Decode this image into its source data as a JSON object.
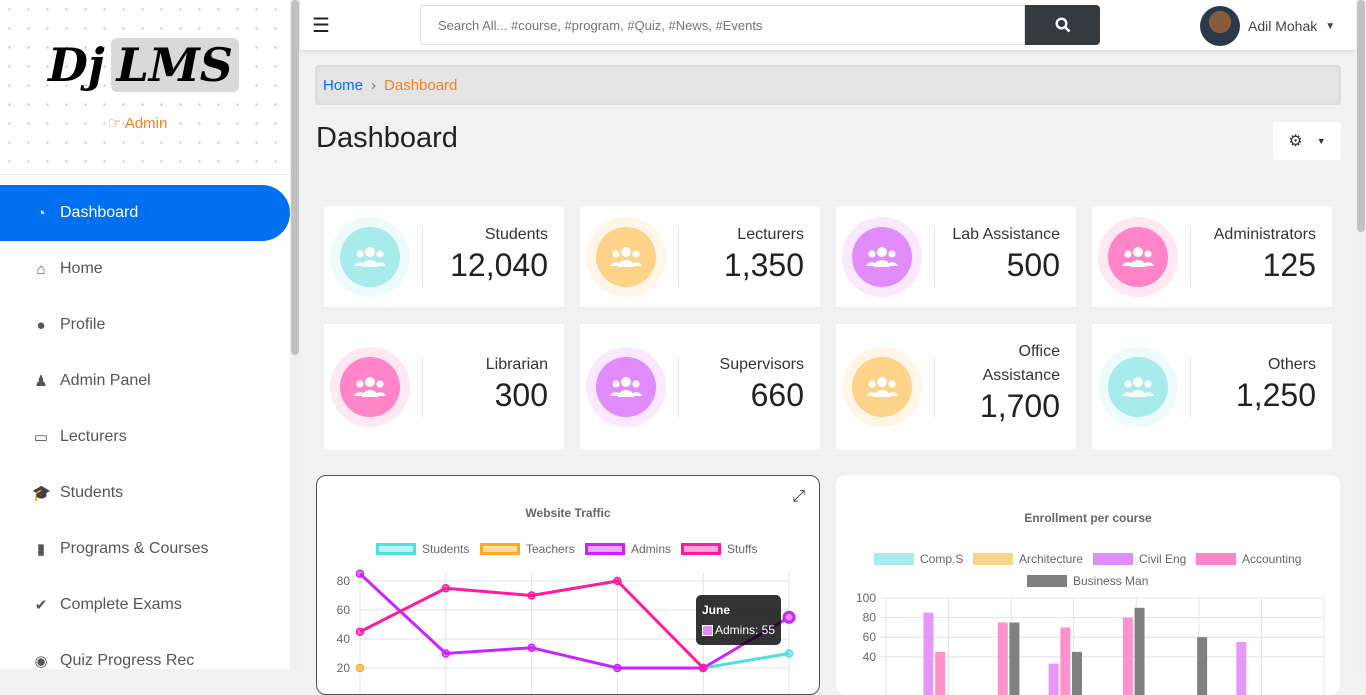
{
  "sidebar": {
    "logo": {
      "part1": "Dj",
      "part2": "LMS"
    },
    "role": "Admin",
    "items": [
      {
        "label": "Dashboard",
        "icon": "tachometer-icon",
        "active": true
      },
      {
        "label": "Home",
        "icon": "home-icon"
      },
      {
        "label": "Profile",
        "icon": "user-icon"
      },
      {
        "label": "Admin Panel",
        "icon": "user-tie-icon"
      },
      {
        "label": "Lecturers",
        "icon": "chalkboard-teacher-icon"
      },
      {
        "label": "Students",
        "icon": "user-graduate-icon"
      },
      {
        "label": "Programs & Courses",
        "icon": "book-open-icon"
      },
      {
        "label": "Complete Exams",
        "icon": "check-double-icon"
      },
      {
        "label": "Quiz Progress Rec",
        "icon": "record-icon"
      }
    ]
  },
  "topbar": {
    "search_placeholder": "Search All... #course, #program, #Quiz, #News, #Events",
    "user_name": "Adil Mohak"
  },
  "breadcrumb": {
    "home": "Home",
    "current": "Dashboard"
  },
  "page_title": "Dashboard",
  "stats": [
    {
      "label": "Students",
      "value": "12,040",
      "color": "#a8ebeb"
    },
    {
      "label": "Lecturers",
      "value": "1,350",
      "color": "#fdd38a"
    },
    {
      "label": "Lab Assistance",
      "value": "500",
      "color": "#e28cfb"
    },
    {
      "label": "Administrators",
      "value": "125",
      "color": "#ff85c8"
    },
    {
      "label": "Librarian",
      "value": "300",
      "color": "#ff85c8"
    },
    {
      "label": "Supervisors",
      "value": "660",
      "color": "#e28cfb"
    },
    {
      "label": "Office Assistance",
      "value": "1,700",
      "color": "#fdd38a"
    },
    {
      "label": "Others",
      "value": "1,250",
      "color": "#a8ebeb"
    }
  ],
  "chart_data": [
    {
      "type": "line",
      "title": "Website Traffic",
      "legend_position": "top",
      "grid": true,
      "ylim": [
        20,
        90
      ],
      "y_ticks": [
        "80",
        "60",
        "40",
        "20"
      ],
      "series": [
        {
          "name": "Students",
          "color": "#4fe0e0",
          "values": [
            null,
            null,
            null,
            null,
            20,
            30
          ]
        },
        {
          "name": "Teachers",
          "color": "#ffa91f",
          "values": [
            20,
            null,
            null,
            null,
            null,
            null
          ]
        },
        {
          "name": "Admins",
          "color": "#cc22ff",
          "values": [
            85,
            30,
            34,
            20,
            20,
            55
          ]
        },
        {
          "name": "Stuffs",
          "color": "#ff1aa0",
          "values": [
            45,
            75,
            70,
            80,
            20,
            null
          ]
        }
      ],
      "tooltip": {
        "title": "June",
        "text": "Admins: 55"
      }
    },
    {
      "type": "bar",
      "title": "Enrollment per course",
      "legend_position": "top",
      "grid": true,
      "ylim": [
        30,
        100
      ],
      "y_ticks": [
        "100",
        "80",
        "60",
        "40"
      ],
      "series": [
        {
          "name": "Comp.S",
          "color": "#a8ebeb",
          "values": [
            null,
            null,
            null,
            null,
            null,
            null
          ]
        },
        {
          "name": "Architecture",
          "color": "#fdd38a",
          "values": [
            null,
            null,
            null,
            null,
            null,
            null
          ]
        },
        {
          "name": "Civil Eng",
          "color": "#e28cfb",
          "values": [
            85,
            null,
            33,
            null,
            null,
            55
          ]
        },
        {
          "name": "Accounting",
          "color": "#ff85c8",
          "values": [
            45,
            75,
            70,
            80,
            null,
            null
          ]
        },
        {
          "name": "Business Man",
          "color": "#808080",
          "values": [
            null,
            75,
            45,
            90,
            60,
            null
          ]
        }
      ]
    }
  ]
}
